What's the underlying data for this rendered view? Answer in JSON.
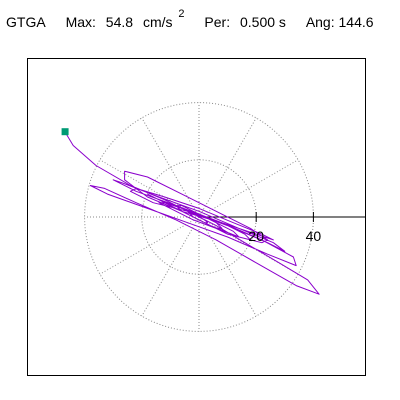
{
  "header": {
    "station": "GTGA",
    "max_label": "Max:",
    "max_value": "54.8",
    "max_unit": "cm/s",
    "max_exp": "2",
    "per_label": "Per:",
    "per_value": "0.500 s",
    "ang_label": "Ang: 144.6"
  },
  "chart_data": {
    "type": "scatter",
    "title": "",
    "xlabel": "",
    "ylabel": "",
    "xlim": [
      -58,
      58
    ],
    "ylim": [
      -55,
      55
    ],
    "grid": true,
    "polar_grid": {
      "radii": [
        20,
        40
      ],
      "spoke_angles_deg": [
        0,
        30,
        60,
        90,
        120,
        150,
        180,
        210,
        240,
        270,
        300,
        330
      ],
      "line_style": "dotted"
    },
    "x_tick_labels": [
      "20",
      "40"
    ],
    "x_ticks": [
      20,
      40
    ],
    "axis_line_y": 0,
    "line_color": "#8b00cc",
    "marker_color": "#009a74",
    "start_marker": {
      "x": -47,
      "y": 30
    },
    "max_amplitude": 54.8,
    "path": [
      [
        -47,
        30
      ],
      [
        -44,
        25
      ],
      [
        -36,
        18
      ],
      [
        -24,
        11
      ],
      [
        -12,
        6
      ],
      [
        -2,
        1
      ],
      [
        6,
        -3
      ],
      [
        16,
        -9
      ],
      [
        28,
        -16
      ],
      [
        38,
        -22
      ],
      [
        42,
        -27
      ],
      [
        34,
        -24
      ],
      [
        20,
        -16
      ],
      [
        6,
        -8
      ],
      [
        -8,
        -1
      ],
      [
        -22,
        5
      ],
      [
        -33,
        10
      ],
      [
        -38,
        11
      ],
      [
        -32,
        8
      ],
      [
        -18,
        3
      ],
      [
        -4,
        -2
      ],
      [
        10,
        -7
      ],
      [
        24,
        -13
      ],
      [
        34,
        -17
      ],
      [
        33,
        -14
      ],
      [
        22,
        -8
      ],
      [
        8,
        -2
      ],
      [
        -8,
        4
      ],
      [
        -22,
        9
      ],
      [
        -30,
        13
      ],
      [
        -27,
        12
      ],
      [
        -14,
        7
      ],
      [
        0,
        2
      ],
      [
        14,
        -4
      ],
      [
        26,
        -9
      ],
      [
        30,
        -12
      ],
      [
        24,
        -9
      ],
      [
        10,
        -3
      ],
      [
        -4,
        2
      ],
      [
        -16,
        5
      ],
      [
        -24,
        9
      ],
      [
        -22,
        10
      ],
      [
        -12,
        7
      ],
      [
        0,
        3
      ],
      [
        12,
        -2
      ],
      [
        22,
        -6
      ],
      [
        26,
        -8
      ],
      [
        20,
        -6
      ],
      [
        8,
        -2
      ],
      [
        -6,
        2
      ],
      [
        -18,
        7
      ],
      [
        -26,
        13
      ],
      [
        -26,
        16
      ],
      [
        -18,
        14
      ],
      [
        -6,
        8
      ],
      [
        6,
        2
      ],
      [
        18,
        -4
      ],
      [
        24,
        -8
      ],
      [
        22,
        -9
      ],
      [
        14,
        -7
      ],
      [
        4,
        -3
      ],
      [
        -6,
        2
      ],
      [
        -14,
        6
      ],
      [
        -18,
        8
      ],
      [
        -14,
        6
      ],
      [
        -6,
        3
      ],
      [
        2,
        0
      ],
      [
        10,
        -3
      ],
      [
        16,
        -6
      ],
      [
        18,
        -8
      ],
      [
        14,
        -7
      ],
      [
        6,
        -4
      ],
      [
        -2,
        -1
      ],
      [
        -10,
        3
      ],
      [
        -14,
        5
      ],
      [
        -12,
        5
      ],
      [
        -6,
        3
      ],
      [
        0,
        1
      ],
      [
        6,
        -2
      ],
      [
        12,
        -5
      ],
      [
        14,
        -7
      ],
      [
        10,
        -6
      ],
      [
        4,
        -3
      ],
      [
        -2,
        0
      ],
      [
        -6,
        2
      ],
      [
        -8,
        4
      ],
      [
        -6,
        4
      ],
      [
        -2,
        2
      ],
      [
        2,
        0
      ],
      [
        6,
        -2
      ],
      [
        8,
        -4
      ],
      [
        6,
        -4
      ],
      [
        2,
        -2
      ],
      [
        -2,
        0
      ],
      [
        -4,
        2
      ],
      [
        -4,
        2
      ],
      [
        -2,
        1
      ],
      [
        0,
        0
      ],
      [
        2,
        -1
      ],
      [
        3,
        -2
      ],
      [
        2,
        -2
      ],
      [
        0,
        -1
      ]
    ]
  }
}
